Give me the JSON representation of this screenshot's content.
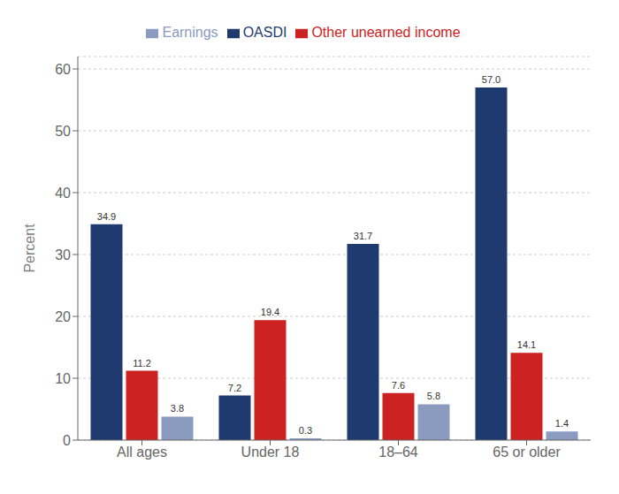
{
  "chart_data": {
    "type": "bar",
    "categories": [
      "All ages",
      "Under 18",
      "18–64",
      "65 or older"
    ],
    "series": [
      {
        "name": "OASDI",
        "color": "#1f3a6e",
        "values": [
          34.9,
          7.2,
          31.7,
          57.0
        ],
        "value_labels": [
          "34.9",
          "7.2",
          "31.7",
          "57.0"
        ]
      },
      {
        "name": "Other unearned income",
        "color": "#cc2222",
        "values": [
          11.2,
          19.4,
          7.6,
          14.1
        ],
        "value_labels": [
          "11.2",
          "19.4",
          "7.6",
          "14.1"
        ]
      },
      {
        "name": "Earnings",
        "color": "#8a9bbf",
        "values": [
          3.8,
          0.3,
          5.8,
          1.4
        ],
        "value_labels": [
          "3.8",
          "0.3",
          "5.8",
          "1.4"
        ]
      }
    ],
    "ylabel": "Percent",
    "ylim": [
      0,
      62
    ],
    "yticks": [
      0,
      10,
      20,
      30,
      40,
      50,
      60
    ],
    "grid": true,
    "legend": "top",
    "data_labels": true
  }
}
